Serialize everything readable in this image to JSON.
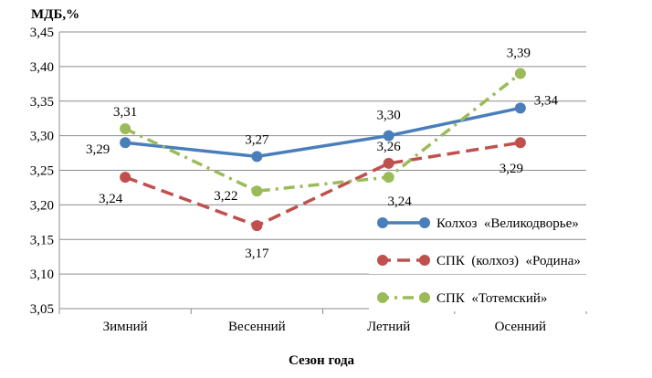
{
  "chart_data": {
    "type": "line",
    "ylabel": "МДБ,%",
    "xlabel": "Сезон года",
    "categories": [
      "Зимний",
      "Весенний",
      "Летний",
      "Осенний"
    ],
    "ylim": [
      3.05,
      3.45
    ],
    "yticks": [
      "3,05",
      "3,10",
      "3,15",
      "3,20",
      "3,25",
      "3,30",
      "3,35",
      "3,40",
      "3,45"
    ],
    "grid": "horizontal",
    "legend_position": "right",
    "series": [
      {
        "name": "Колхоз  «Великодворье»",
        "values": [
          3.29,
          3.27,
          3.3,
          3.34
        ],
        "labels": [
          "3,29",
          "3,27",
          "3,30",
          "3,34"
        ],
        "color": "#4a7ebb",
        "style": "solid"
      },
      {
        "name": "СПК  (колхоз)  «Родина»",
        "values": [
          3.24,
          3.17,
          3.26,
          3.29
        ],
        "labels": [
          "3,24",
          "3,17",
          "3,26",
          "3,29"
        ],
        "color": "#c0504d",
        "style": "dashed"
      },
      {
        "name": "СПК  «Тотемский»",
        "values": [
          3.31,
          3.22,
          3.24,
          3.39
        ],
        "labels": [
          "3,31",
          "3,22",
          "3,24",
          "3,39"
        ],
        "color": "#9bbb59",
        "style": "dash-dot"
      }
    ]
  }
}
